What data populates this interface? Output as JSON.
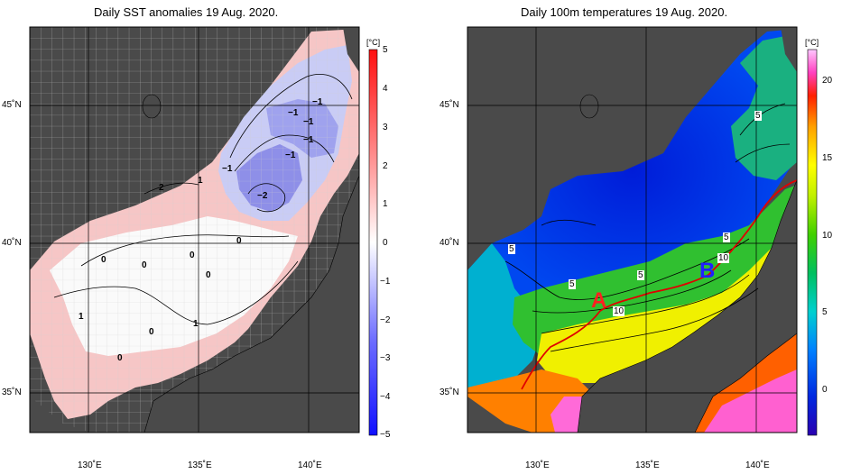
{
  "left_map": {
    "title": "Daily SST anomalies 19 Aug. 2020.",
    "colorbar_unit": "[°C]",
    "colorbar_ticks": [
      "5",
      "4",
      "3",
      "2",
      "1",
      "0",
      "−1",
      "−2",
      "−3",
      "−4",
      "−5"
    ],
    "colorbar_range": [
      -5,
      5
    ],
    "lat_labels": [
      "45˚N",
      "40˚N",
      "35˚N"
    ],
    "lon_labels": [
      "130˚E",
      "135˚E",
      "140˚E"
    ],
    "contour_labels": [
      "−1",
      "−1",
      "−1",
      "−1",
      "−1",
      "−1",
      "−2",
      "2",
      "1",
      "0",
      "0",
      "0",
      "0",
      "0",
      "0",
      "1",
      "1",
      "0"
    ]
  },
  "right_map": {
    "title": "Daily 100m temperatures 19 Aug. 2020.",
    "colorbar_unit": "[°C]",
    "colorbar_ticks": [
      "20",
      "15",
      "10",
      "5",
      "0"
    ],
    "colorbar_range": [
      -3,
      22
    ],
    "lat_labels": [
      "45˚N",
      "40˚N",
      "35˚N"
    ],
    "lon_labels": [
      "130˚E",
      "135˚E",
      "140˚E"
    ],
    "contour_labels": [
      "5",
      "5",
      "5",
      "5",
      "5",
      "10",
      "10"
    ],
    "section_markers": [
      "A",
      "B"
    ],
    "colors": {
      "marker_A": "#ff2020",
      "marker_B": "#2020ff",
      "section_line": "#e00000"
    }
  },
  "colors": {
    "land": "#4a4a4a",
    "land_light": "#cfcfcf",
    "grid": "#000000"
  }
}
